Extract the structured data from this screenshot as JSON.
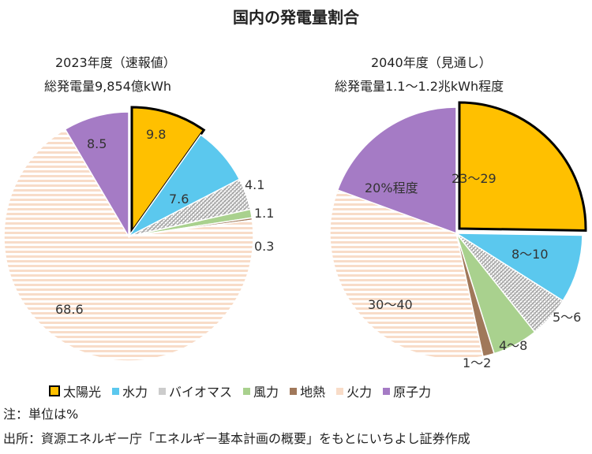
{
  "chart_data": [
    {
      "type": "pie",
      "title": "2023年度（速報値）",
      "subtitle": "総発電量9,854億kWh",
      "unit": "%",
      "categories": [
        "太陽光",
        "水力",
        "バイオマス",
        "風力",
        "地熱",
        "火力",
        "原子力"
      ],
      "values": [
        9.8,
        7.6,
        4.1,
        1.1,
        0.3,
        68.6,
        8.5
      ],
      "labels": [
        "9.8",
        "7.6",
        "4.1",
        "1.1",
        "0.3",
        "68.6",
        "8.5"
      ],
      "exploded": "太陽光"
    },
    {
      "type": "pie",
      "title": "2040年度（見通し）",
      "subtitle": "総発電量1.1～1.2兆kWh程度",
      "unit": "%",
      "categories": [
        "太陽光",
        "水力",
        "バイオマス",
        "風力",
        "地熱",
        "火力",
        "原子力"
      ],
      "ranges": [
        [
          23,
          29
        ],
        [
          8,
          10
        ],
        [
          5,
          6
        ],
        [
          4,
          8
        ],
        [
          1,
          2
        ],
        [
          30,
          40
        ],
        [
          20,
          20
        ]
      ],
      "labels": [
        "23～29",
        "8～10",
        "5～6",
        "4～8",
        "1～2",
        "30～40",
        "20%程度"
      ],
      "exploded": "太陽光"
    }
  ],
  "title": "国内の発電量割合",
  "colors": {
    "太陽光": "#FFC000",
    "水力": "#5BC8EE",
    "バイオマス": "#BFBFBF",
    "風力": "#A9D18E",
    "地熱": "#A0785A",
    "火力": "#F8DCC8",
    "原子力": "#A57BC5"
  },
  "legend": [
    "太陽光",
    "水力",
    "バイオマス",
    "風力",
    "地熱",
    "火力",
    "原子力"
  ],
  "note": "注：単位は%",
  "source": "出所：資源エネルギー庁「エネルギー基本計画の概要」をもとにいちよし証券作成"
}
